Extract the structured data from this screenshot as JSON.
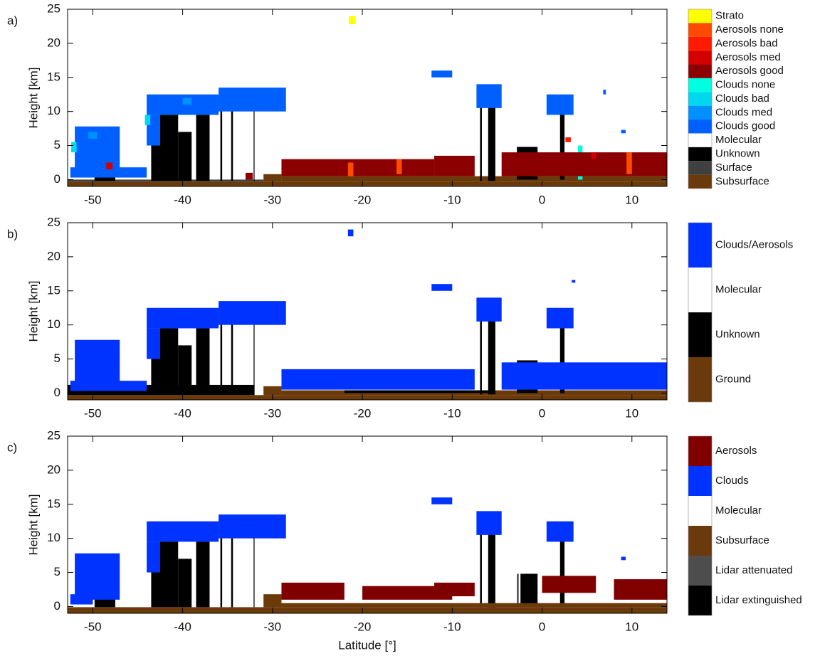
{
  "chart_data": [
    {
      "type": "curtain",
      "panel_label": "a)",
      "ylabel": "Height [km]",
      "xlim": [
        -52.8,
        13.9
      ],
      "ylim": [
        -1,
        25
      ],
      "xticks": [
        -50,
        -40,
        -30,
        -20,
        -10,
        0,
        10
      ],
      "yticks": [
        0,
        5,
        10,
        15,
        20,
        25
      ],
      "series": [
        {
          "name": "Strato",
          "color": "#ffff00",
          "regions": [
            [
              -21.5,
              -20.8,
              22.8,
              24
            ]
          ]
        },
        {
          "name": "Aerosols none",
          "color": "#ff4a00",
          "regions": [
            [
              -21.6,
              -21,
              0.5,
              2.5
            ],
            [
              -16.2,
              -15.6,
              0.8,
              3
            ],
            [
              9.4,
              10,
              0.8,
              4
            ]
          ]
        },
        {
          "name": "Aerosols bad",
          "color": "#ff1a00",
          "regions": [
            [
              2.6,
              3.2,
              5.5,
              6.2
            ]
          ]
        },
        {
          "name": "Aerosols med",
          "color": "#d40000",
          "regions": [
            [
              -48.5,
              -47.8,
              1.5,
              2.5
            ],
            [
              5.5,
              6,
              3,
              4
            ]
          ]
        },
        {
          "name": "Aerosols good",
          "color": "#8b0000",
          "regions": [
            [
              -29,
              -12,
              0.5,
              3
            ],
            [
              -12,
              -7.5,
              0.5,
              3.5
            ],
            [
              -4.5,
              13.9,
              0.5,
              4
            ],
            [
              -33,
              -32.2,
              0,
              1
            ]
          ]
        },
        {
          "name": "Clouds none",
          "color": "#00ffe0",
          "regions": [
            [
              -25.3,
              -24.9,
              0.5,
              2.5
            ],
            [
              -11.6,
              -11.1,
              0.5,
              2
            ],
            [
              -1.2,
              -0.6,
              0.5,
              3
            ],
            [
              4,
              4.5,
              0,
              5
            ]
          ]
        },
        {
          "name": "Clouds bad",
          "color": "#00d8f0",
          "regions": [
            [
              -52.4,
              -51.8,
              4,
              5.5
            ],
            [
              -44.2,
              -43.6,
              8,
              9.5
            ]
          ]
        },
        {
          "name": "Clouds med",
          "color": "#0090ff",
          "regions": [
            [
              -50.5,
              -49.5,
              6,
              7
            ],
            [
              -40,
              -39,
              11,
              12
            ]
          ]
        },
        {
          "name": "Clouds good",
          "color": "#0060ff",
          "regions": [
            [
              -52,
              -47,
              1,
              7.8
            ],
            [
              -52.5,
              -44,
              0.3,
              1.8
            ],
            [
              -44,
              -36,
              9.5,
              12.5
            ],
            [
              -44,
              -42.5,
              5,
              9.5
            ],
            [
              -36,
              -28.5,
              10,
              13.5
            ],
            [
              -12.3,
              -10,
              15,
              16
            ],
            [
              -7.3,
              -4.5,
              10.5,
              14
            ],
            [
              0.5,
              3.5,
              9.5,
              12.5
            ],
            [
              6.8,
              7.1,
              12.5,
              13.2
            ],
            [
              8.8,
              9.3,
              6.8,
              7.3
            ]
          ]
        },
        {
          "name": "Molecular",
          "color": "#ffffff"
        },
        {
          "name": "Unknown",
          "color": "#000000",
          "regions": [
            [
              -49.8,
              -47.5,
              -0.2,
              5.2
            ],
            [
              -43.5,
              -40.5,
              -0.2,
              9.5
            ],
            [
              -40.5,
              -39,
              -0.2,
              7
            ],
            [
              -38.5,
              -37,
              -0.2,
              9.5
            ],
            [
              -35.8,
              -35.6,
              -0.2,
              11
            ],
            [
              -34.6,
              -34.4,
              -0.2,
              10.5
            ],
            [
              -32.1,
              -32,
              -0.2,
              11
            ],
            [
              -6.9,
              -6.7,
              -0.2,
              12
            ],
            [
              -6,
              -5.2,
              -0.2,
              12
            ],
            [
              -2.8,
              -0.5,
              0,
              4.8
            ],
            [
              2,
              2.5,
              0,
              11
            ]
          ]
        },
        {
          "name": "Surface",
          "color": "#404040",
          "regions": [
            [
              -52.8,
              -31,
              -0.3,
              0
            ]
          ]
        },
        {
          "name": "Subsurface",
          "color": "#6b3a0a",
          "regions": [
            [
              -52.8,
              13.9,
              -1,
              -0.3
            ],
            [
              -31,
              -29,
              -0.3,
              0.8
            ],
            [
              -29,
              13.9,
              -0.3,
              0.5
            ]
          ]
        }
      ]
    },
    {
      "type": "curtain",
      "panel_label": "b)",
      "ylabel": "Height [km]",
      "xlim": [
        -52.8,
        13.9
      ],
      "ylim": [
        -1,
        25
      ],
      "xticks": [
        -50,
        -40,
        -30,
        -20,
        -10,
        0,
        10
      ],
      "yticks": [
        0,
        5,
        10,
        15,
        20,
        25
      ],
      "series": [
        {
          "name": "Clouds/Aerosols",
          "color": "#0033ff",
          "regions": [
            [
              -21.6,
              -21,
              23,
              24
            ],
            [
              -52,
              -47,
              1,
              7.8
            ],
            [
              -52.5,
              -44,
              0.3,
              1.8
            ],
            [
              -44,
              -36,
              9.5,
              12.5
            ],
            [
              -44,
              -42.5,
              5,
              9.5
            ],
            [
              -36,
              -28.5,
              10,
              13.5
            ],
            [
              -12.3,
              -10,
              15,
              16
            ],
            [
              -7.3,
              -4.5,
              10.5,
              14
            ],
            [
              0.5,
              3.5,
              9.5,
              12.5
            ],
            [
              -29,
              -7.5,
              0.5,
              3.5
            ],
            [
              -4.5,
              13.9,
              0.5,
              4.5
            ],
            [
              3.3,
              3.7,
              16.2,
              16.6
            ]
          ]
        },
        {
          "name": "Molecular",
          "color": "#ffffff"
        },
        {
          "name": "Unknown",
          "color": "#000000",
          "regions": [
            [
              -49.8,
              -47.5,
              -0.2,
              5.2
            ],
            [
              -43.5,
              -40.5,
              -0.2,
              9.5
            ],
            [
              -40.5,
              -39,
              -0.2,
              7
            ],
            [
              -38.5,
              -37,
              -0.2,
              9.5
            ],
            [
              -35.8,
              -35.6,
              -0.2,
              11
            ],
            [
              -34.6,
              -34.4,
              -0.2,
              10.5
            ],
            [
              -32.1,
              -32,
              -0.2,
              11
            ],
            [
              -6.9,
              -6.7,
              -0.2,
              12
            ],
            [
              -6,
              -5.2,
              -0.2,
              12
            ],
            [
              -2.8,
              -0.5,
              0,
              4.8
            ],
            [
              2,
              2.5,
              0,
              11
            ],
            [
              -52.8,
              -32,
              -0.3,
              1.2
            ],
            [
              -22,
              -6,
              0,
              0.4
            ]
          ]
        },
        {
          "name": "Ground",
          "color": "#6b3a0a",
          "regions": [
            [
              -52.8,
              13.9,
              -1,
              -0.3
            ],
            [
              -31,
              -29,
              -0.3,
              1
            ],
            [
              -29,
              13.9,
              -0.3,
              0.4
            ]
          ]
        }
      ]
    },
    {
      "type": "curtain",
      "panel_label": "c)",
      "ylabel": "Height [km]",
      "xlabel": "Latitude [°]",
      "xlim": [
        -52.8,
        13.9
      ],
      "ylim": [
        -1,
        25
      ],
      "xticks": [
        -50,
        -40,
        -30,
        -20,
        -10,
        0,
        10
      ],
      "yticks": [
        0,
        5,
        10,
        15,
        20,
        25
      ],
      "series": [
        {
          "name": "Aerosols",
          "color": "#800000",
          "regions": [
            [
              -29,
              -22,
              1,
              3.5
            ],
            [
              -20,
              -10,
              1,
              3
            ],
            [
              -12,
              -7.5,
              1.5,
              3.5
            ],
            [
              0,
              6,
              2,
              4.5
            ],
            [
              8,
              13.9,
              1,
              4
            ]
          ]
        },
        {
          "name": "Clouds",
          "color": "#0033ff",
          "regions": [
            [
              -52,
              -47,
              1,
              7.8
            ],
            [
              -52.5,
              -50,
              0.3,
              1.8
            ],
            [
              -44,
              -36,
              9.5,
              12.5
            ],
            [
              -44,
              -42.5,
              5,
              9.5
            ],
            [
              -36,
              -28.5,
              10,
              13.5
            ],
            [
              -12.3,
              -10,
              15,
              16
            ],
            [
              -7.3,
              -4.5,
              10.5,
              14
            ],
            [
              0.5,
              3.5,
              9.5,
              12.5
            ],
            [
              8.8,
              9.3,
              6.8,
              7.3
            ]
          ]
        },
        {
          "name": "Molecular",
          "color": "#ffffff"
        },
        {
          "name": "Subsurface",
          "color": "#6b3a0a",
          "regions": [
            [
              -52.8,
              13.9,
              -1,
              -0.1
            ],
            [
              -31,
              -29,
              -0.1,
              1.8
            ],
            [
              -29,
              13.9,
              -0.1,
              0.5
            ]
          ]
        },
        {
          "name": "Lidar attenuated",
          "color": "#4d4d4d",
          "regions": [
            [
              -2.8,
              -2.6,
              0,
              4.8
            ]
          ]
        },
        {
          "name": "Lidar extinguished",
          "color": "#000000",
          "regions": [
            [
              -49.8,
              -47.5,
              -0.1,
              5.2
            ],
            [
              -43.5,
              -40.5,
              -0.1,
              9.5
            ],
            [
              -40.5,
              -39,
              -0.1,
              7
            ],
            [
              -38.5,
              -37,
              -0.1,
              9.5
            ],
            [
              -35.8,
              -35.6,
              -0.1,
              11
            ],
            [
              -34.6,
              -34.4,
              -0.1,
              10.5
            ],
            [
              -32.1,
              -32,
              -0.1,
              11
            ],
            [
              -6.9,
              -6.7,
              -0.1,
              12
            ],
            [
              -6,
              -5.2,
              -0.1,
              12
            ],
            [
              -2.4,
              -0.5,
              0,
              4.8
            ],
            [
              2,
              2.5,
              0,
              11
            ]
          ]
        }
      ]
    }
  ]
}
